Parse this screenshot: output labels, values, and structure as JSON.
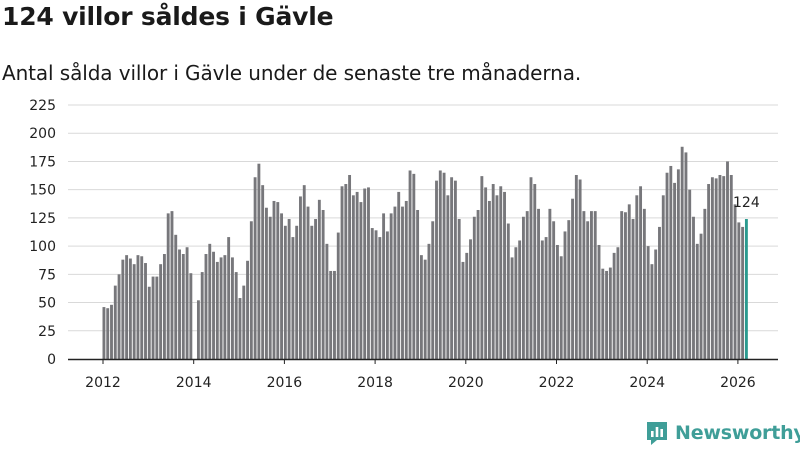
{
  "header": {
    "title": "124 villor såldes i Gävle",
    "subtitle": "Antal sålda villor i Gävle under de senaste tre månaderna."
  },
  "brand": {
    "name": "Newsworthy",
    "color": "#3f9e98"
  },
  "colors": {
    "bar": "#77777b",
    "highlight": "#2a9a8f",
    "grid": "#d9d9d9",
    "axis": "#222222"
  },
  "chart_data": {
    "type": "bar",
    "title": "124 villor såldes i Gävle",
    "xlabel": "",
    "ylabel": "",
    "ylim": [
      0,
      225
    ],
    "y_ticks": [
      "0",
      "25",
      "50",
      "75",
      "100",
      "125",
      "150",
      "175",
      "200",
      "225"
    ],
    "x_ticks": [
      "2012",
      "2014",
      "2016",
      "2018",
      "2020",
      "2022",
      "2024",
      "2026"
    ],
    "x_start": "2012-01",
    "frequency": "monthly",
    "highlight_label": "124",
    "values": [
      46,
      45,
      48,
      65,
      75,
      88,
      92,
      89,
      84,
      92,
      91,
      85,
      64,
      73,
      73,
      84,
      93,
      129,
      131,
      110,
      97,
      93,
      99,
      76,
      0,
      52,
      77,
      93,
      102,
      95,
      86,
      90,
      92,
      108,
      90,
      77,
      54,
      65,
      87,
      122,
      161,
      173,
      154,
      134,
      126,
      140,
      139,
      129,
      118,
      124,
      108,
      118,
      144,
      154,
      135,
      118,
      124,
      141,
      132,
      102,
      78,
      78,
      112,
      153,
      155,
      163,
      145,
      148,
      139,
      151,
      152,
      116,
      114,
      108,
      129,
      113,
      129,
      135,
      148,
      135,
      140,
      167,
      164,
      132,
      92,
      88,
      102,
      122,
      158,
      167,
      165,
      145,
      161,
      158,
      124,
      86,
      94,
      106,
      126,
      132,
      162,
      152,
      140,
      155,
      145,
      153,
      148,
      120,
      90,
      99,
      105,
      126,
      131,
      161,
      155,
      133,
      105,
      108,
      133,
      122,
      101,
      91,
      113,
      123,
      142,
      163,
      159,
      131,
      122,
      131,
      131,
      101,
      80,
      78,
      81,
      94,
      99,
      131,
      130,
      137,
      124,
      145,
      153,
      133,
      100,
      84,
      97,
      117,
      145,
      165,
      171,
      156,
      168,
      188,
      183,
      150,
      126,
      102,
      111,
      133,
      155,
      161,
      160,
      163,
      162,
      175,
      163,
      137,
      121,
      117,
      124
    ]
  }
}
